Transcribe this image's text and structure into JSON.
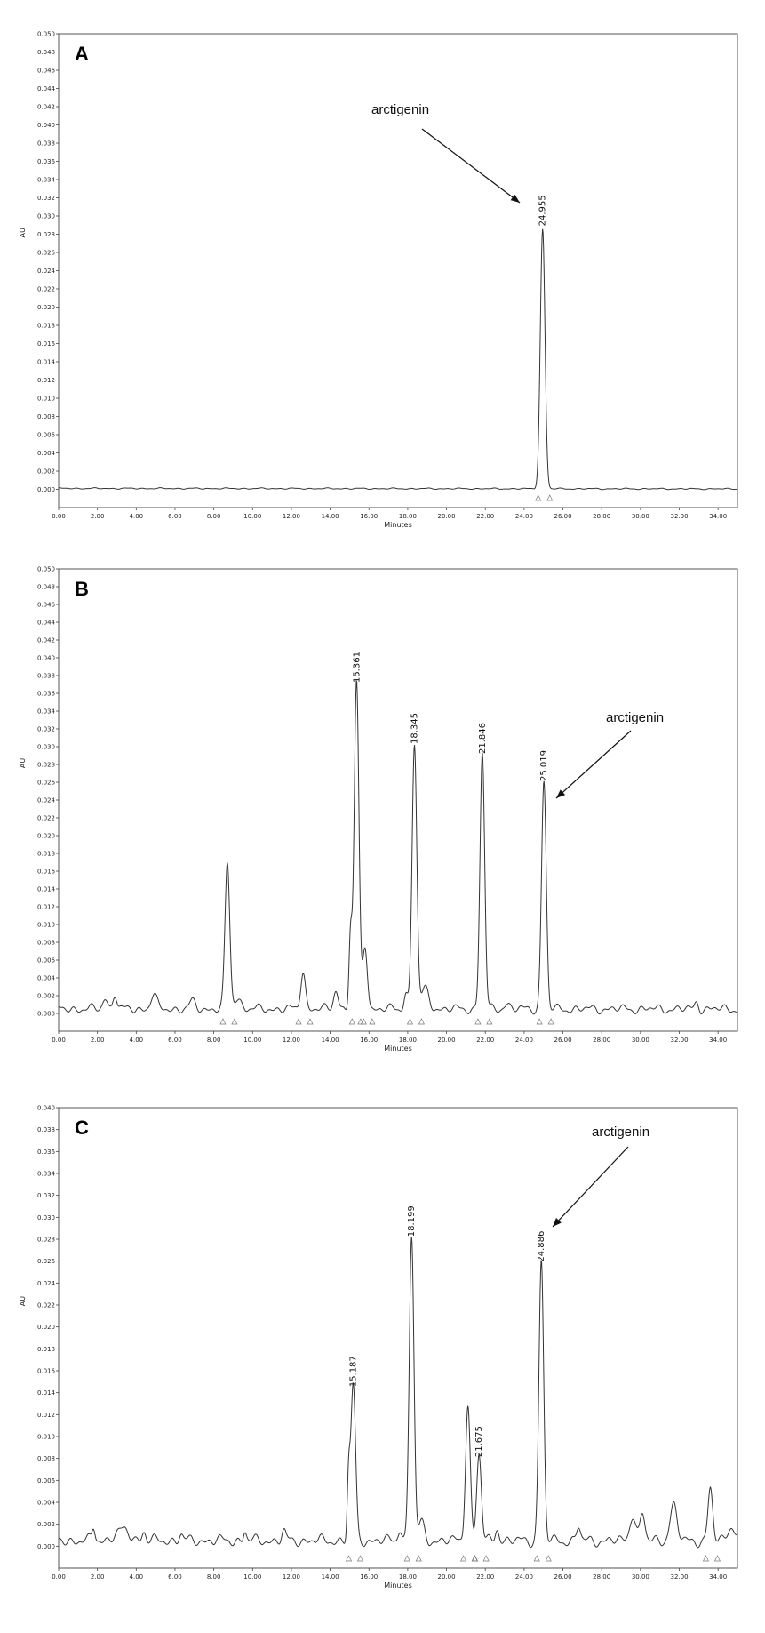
{
  "chart_data": [
    {
      "type": "line",
      "panel": "A",
      "xlabel": "Minutes",
      "ylabel": "AU",
      "xlim": [
        0,
        35
      ],
      "ylim": [
        -0.002,
        0.05
      ],
      "xticks": [
        "0.00",
        "2.00",
        "4.00",
        "6.00",
        "8.00",
        "10.00",
        "12.00",
        "14.00",
        "16.00",
        "18.00",
        "20.00",
        "22.00",
        "24.00",
        "26.00",
        "28.00",
        "30.00",
        "32.00",
        "34.00"
      ],
      "yticks": [
        "0.000",
        "0.002",
        "0.004",
        "0.006",
        "0.008",
        "0.010",
        "0.012",
        "0.014",
        "0.016",
        "0.018",
        "0.020",
        "0.022",
        "0.024",
        "0.026",
        "0.028",
        "0.030",
        "0.032",
        "0.034",
        "0.036",
        "0.038",
        "0.040",
        "0.042",
        "0.044",
        "0.046",
        "0.048",
        "0.050"
      ],
      "peaks": [
        {
          "rt": 24.955,
          "height": 0.0285,
          "label": "24.955"
        }
      ],
      "annotation": {
        "text": "arctigenin"
      }
    },
    {
      "type": "line",
      "panel": "B",
      "xlabel": "Minutes",
      "ylabel": "AU",
      "xlim": [
        0,
        35
      ],
      "ylim": [
        -0.002,
        0.05
      ],
      "xticks": [
        "0.00",
        "2.00",
        "4.00",
        "6.00",
        "8.00",
        "10.00",
        "12.00",
        "14.00",
        "16.00",
        "18.00",
        "20.00",
        "22.00",
        "24.00",
        "26.00",
        "28.00",
        "30.00",
        "32.00",
        "34.00"
      ],
      "yticks": [
        "0.000",
        "0.002",
        "0.004",
        "0.006",
        "0.008",
        "0.010",
        "0.012",
        "0.014",
        "0.016",
        "0.018",
        "0.020",
        "0.022",
        "0.024",
        "0.026",
        "0.028",
        "0.030",
        "0.032",
        "0.034",
        "0.036",
        "0.038",
        "0.040",
        "0.042",
        "0.044",
        "0.046",
        "0.048",
        "0.050"
      ],
      "peaks": [
        {
          "rt": 8.7,
          "height": 0.0163,
          "label": ""
        },
        {
          "rt": 12.6,
          "height": 0.0043,
          "label": ""
        },
        {
          "rt": 15.361,
          "height": 0.0368,
          "label": "15.361"
        },
        {
          "rt": 15.8,
          "height": 0.0072,
          "label": ""
        },
        {
          "rt": 18.345,
          "height": 0.0299,
          "label": "18.345"
        },
        {
          "rt": 21.846,
          "height": 0.0288,
          "label": "21.846"
        },
        {
          "rt": 25.019,
          "height": 0.0257,
          "label": "25.019"
        }
      ],
      "annotation": {
        "text": "arctigenin"
      }
    },
    {
      "type": "line",
      "panel": "C",
      "xlabel": "Minutes",
      "ylabel": "AU",
      "xlim": [
        0,
        35
      ],
      "ylim": [
        -0.002,
        0.04
      ],
      "xticks": [
        "0.00",
        "2.00",
        "4.00",
        "6.00",
        "8.00",
        "10.00",
        "12.00",
        "14.00",
        "16.00",
        "18.00",
        "20.00",
        "22.00",
        "24.00",
        "26.00",
        "28.00",
        "30.00",
        "32.00",
        "34.00"
      ],
      "yticks": [
        "0.000",
        "0.002",
        "0.004",
        "0.006",
        "0.008",
        "0.010",
        "0.012",
        "0.014",
        "0.016",
        "0.018",
        "0.020",
        "0.022",
        "0.024",
        "0.026",
        "0.028",
        "0.030",
        "0.032",
        "0.034",
        "0.036",
        "0.038",
        "0.040"
      ],
      "peaks": [
        {
          "rt": 15.187,
          "height": 0.0142,
          "label": "15.187"
        },
        {
          "rt": 18.199,
          "height": 0.0279,
          "label": "18.199"
        },
        {
          "rt": 21.1,
          "height": 0.0125,
          "label": ""
        },
        {
          "rt": 21.675,
          "height": 0.0078,
          "label": "21.675"
        },
        {
          "rt": 24.886,
          "height": 0.0256,
          "label": "24.886"
        },
        {
          "rt": 33.6,
          "height": 0.0047,
          "label": ""
        }
      ],
      "annotation": {
        "text": "arctigenin"
      }
    }
  ]
}
